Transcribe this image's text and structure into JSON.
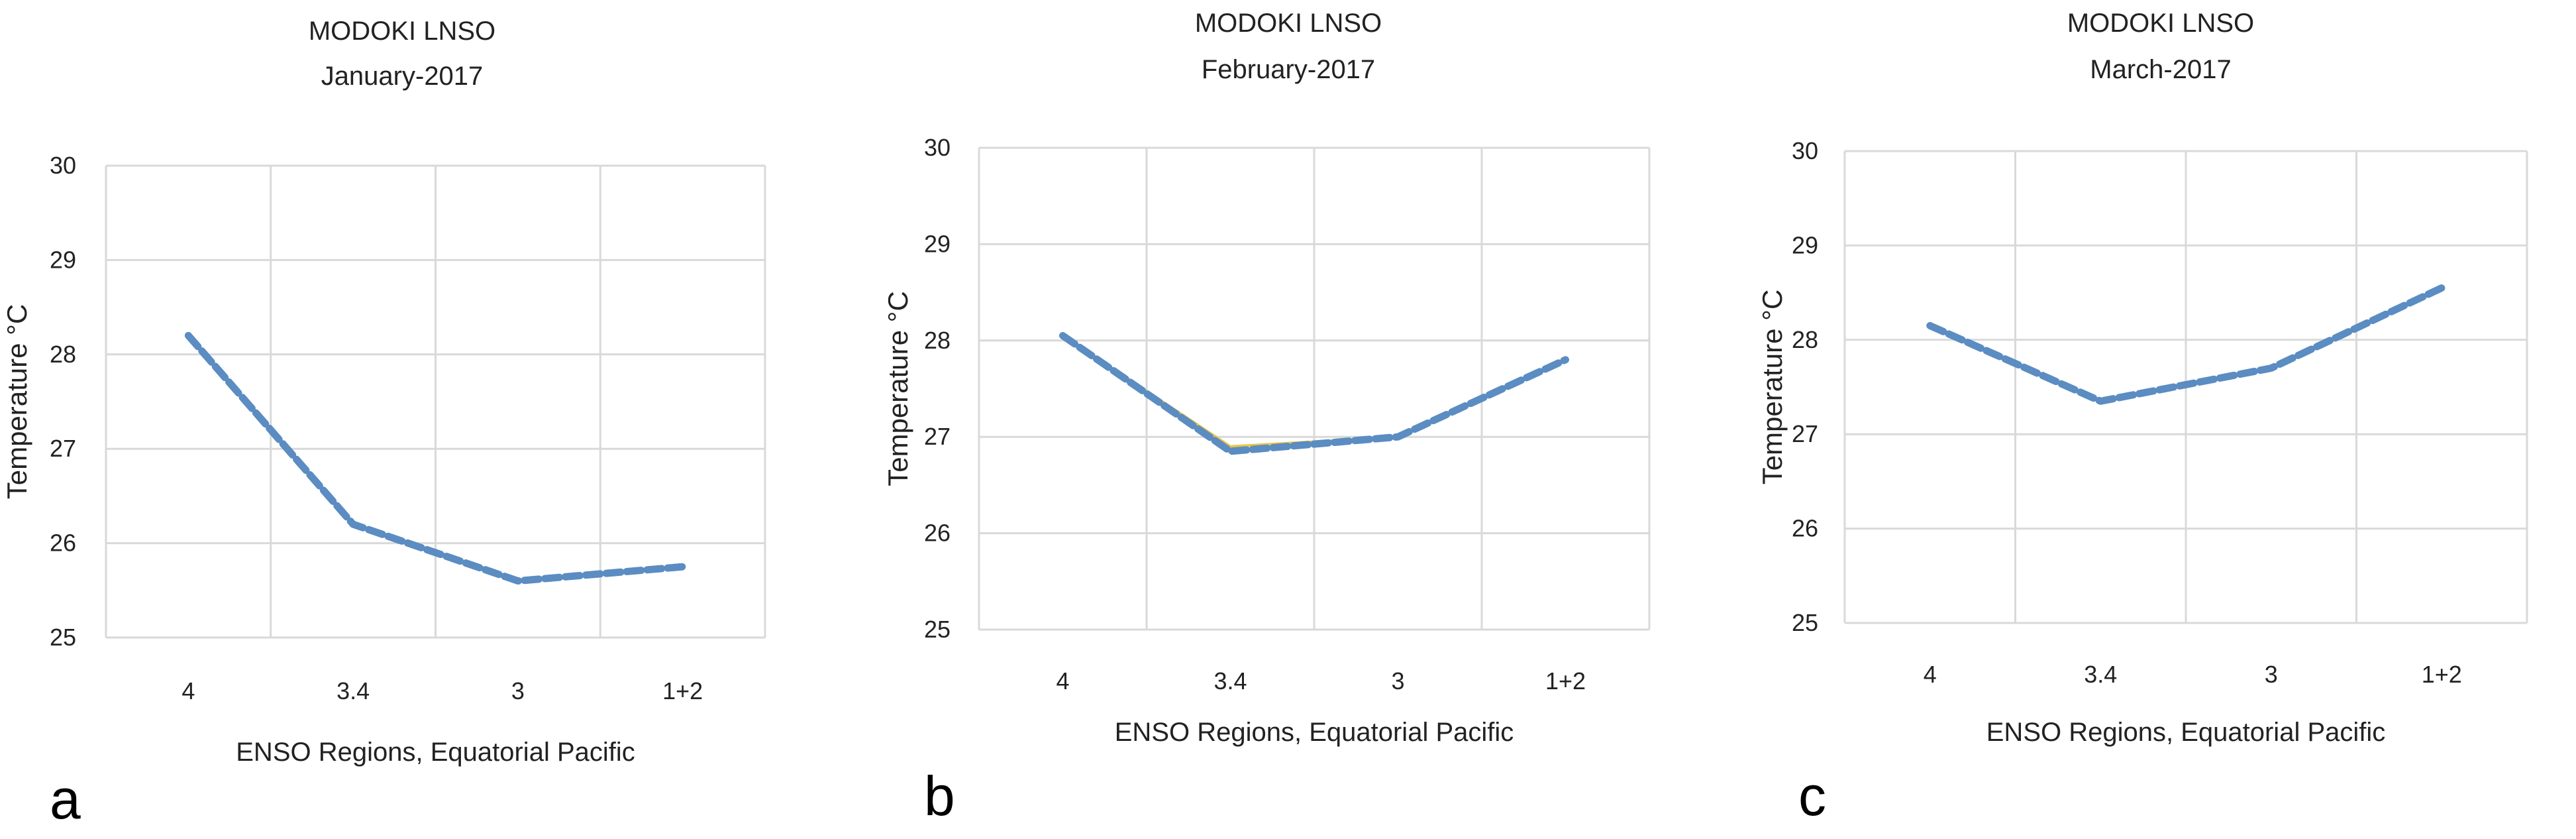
{
  "colors": {
    "observed": "#E8C547",
    "model": "#5B8CC2",
    "grid": "#D9D9D9",
    "text": "#222222"
  },
  "chart_data": [
    {
      "type": "line",
      "panel_label": "a",
      "title": "MODOKI LNSO",
      "subtitle": "January-2017",
      "xlabel": "ENSO Regions, Equatorial Pacific",
      "ylabel": "Temperature  °C",
      "categories": [
        "4",
        "3.4",
        "3",
        "1+2"
      ],
      "ylim": [
        25,
        30
      ],
      "yticks": [
        "25",
        "26",
        "27",
        "28",
        "29",
        "30"
      ],
      "grid": true,
      "series": [
        {
          "style": "solid",
          "color": "#E8C547",
          "values": [
            28.2,
            26.2,
            25.6,
            25.75
          ]
        },
        {
          "style": "dashed",
          "color": "#5B8CC2",
          "values": [
            28.2,
            26.2,
            25.6,
            25.75
          ]
        }
      ]
    },
    {
      "type": "line",
      "panel_label": "b",
      "title": "MODOKI LNSO",
      "subtitle": "February-2017",
      "xlabel": "ENSO Regions, Equatorial Pacific",
      "ylabel": "Temperature  °C",
      "categories": [
        "4",
        "3.4",
        "3",
        "1+2"
      ],
      "ylim": [
        25,
        30
      ],
      "yticks": [
        "25",
        "26",
        "27",
        "28",
        "29",
        "30"
      ],
      "grid": true,
      "series": [
        {
          "style": "solid",
          "color": "#E8C547",
          "values": [
            28.05,
            26.9,
            27.0,
            27.8
          ]
        },
        {
          "style": "dashed",
          "color": "#5B8CC2",
          "values": [
            28.05,
            26.85,
            27.0,
            27.8
          ]
        }
      ]
    },
    {
      "type": "line",
      "panel_label": "c",
      "title": "MODOKI LNSO",
      "subtitle": "March-2017",
      "xlabel": "ENSO Regions, Equatorial Pacific",
      "ylabel": "Temperature  °C",
      "categories": [
        "4",
        "3.4",
        "3",
        "1+2"
      ],
      "ylim": [
        25,
        30
      ],
      "yticks": [
        "25",
        "26",
        "27",
        "28",
        "29",
        "30"
      ],
      "grid": true,
      "series": [
        {
          "style": "solid",
          "color": "#E8C547",
          "values": [
            28.15,
            27.35,
            27.7,
            28.55
          ]
        },
        {
          "style": "dashed",
          "color": "#5B8CC2",
          "values": [
            28.15,
            27.35,
            27.7,
            28.55
          ]
        }
      ]
    }
  ]
}
